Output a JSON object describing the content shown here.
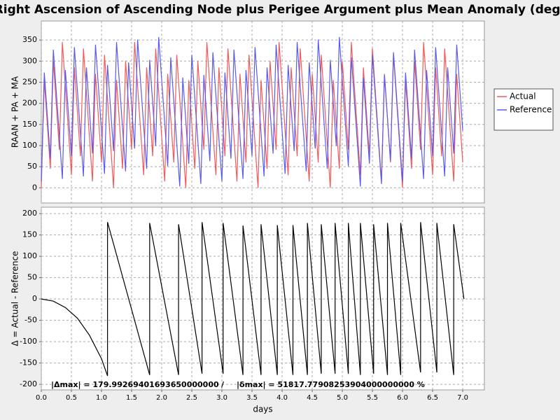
{
  "chart_data": [
    {
      "type": "line",
      "title": "Right Ascension of Ascending Node plus Perigee Argument plus Mean Anomaly (deg)",
      "ylabel": "RAAN + PA + MA",
      "x": [
        0,
        0.05,
        0.1,
        0.15,
        0.2,
        0.25,
        0.3,
        0.35,
        0.4,
        0.45,
        0.5,
        0.55,
        0.6,
        0.65,
        0.7,
        0.75,
        0.8,
        0.85,
        0.9,
        0.95,
        1,
        1.05,
        1.1,
        1.15,
        1.2,
        1.25,
        1.3,
        1.35,
        1.4,
        1.45,
        1.5,
        1.55,
        1.6,
        1.65,
        1.7,
        1.75,
        1.8,
        1.85,
        1.9,
        1.95,
        2,
        2.05,
        2.1,
        2.15,
        2.2,
        2.25,
        2.3,
        2.35,
        2.4,
        2.45,
        2.5,
        2.55,
        2.6,
        2.65,
        2.7,
        2.75,
        2.8,
        2.85,
        2.9,
        2.95,
        3,
        3.05,
        3.1,
        3.15,
        3.2,
        3.25,
        3.3,
        3.35,
        3.4,
        3.45,
        3.5,
        3.55,
        3.6,
        3.65,
        3.7,
        3.75,
        3.8,
        3.85,
        3.9,
        3.95,
        4,
        4.05,
        4.1,
        4.15,
        4.2,
        4.25,
        4.3,
        4.35,
        4.4,
        4.45,
        4.5,
        4.55,
        4.6,
        4.65,
        4.7,
        4.75,
        4.8,
        4.85,
        4.9,
        4.95,
        5,
        5.05,
        5.1,
        5.15,
        5.2,
        5.25,
        5.3,
        5.35,
        5.4,
        5.45,
        5.5,
        5.55,
        5.6,
        5.65,
        5.7,
        5.75,
        5.8,
        5.85,
        5.9,
        5.95,
        6,
        6.05,
        6.1,
        6.15,
        6.2,
        6.25,
        6.3,
        6.35,
        6.4,
        6.45,
        6.5,
        6.55,
        6.6,
        6.65,
        6.7,
        6.75,
        6.8,
        6.85,
        6.9,
        6.95,
        7
      ],
      "series": [
        {
          "name": "Actual",
          "color": "#f05a5a",
          "values": [
            0,
            255,
            150,
            45,
            300,
            195,
            90,
            345,
            240,
            135,
            30,
            285,
            180,
            75,
            330,
            225,
            120,
            15,
            270,
            165,
            60,
            315,
            210,
            105,
            0,
            255,
            150,
            45,
            300,
            195,
            90,
            345,
            240,
            135,
            30,
            285,
            180,
            75,
            330,
            225,
            120,
            15,
            270,
            165,
            60,
            315,
            210,
            105,
            0,
            255,
            150,
            45,
            300,
            195,
            90,
            345,
            240,
            135,
            30,
            285,
            180,
            75,
            330,
            225,
            120,
            15,
            270,
            165,
            60,
            315,
            210,
            105,
            0,
            255,
            150,
            45,
            300,
            195,
            90,
            345,
            240,
            135,
            30,
            285,
            180,
            75,
            330,
            225,
            120,
            15,
            270,
            165,
            60,
            315,
            210,
            105,
            0,
            255,
            150,
            45,
            300,
            195,
            90,
            345,
            240,
            135,
            30,
            285,
            180,
            75,
            330,
            225,
            120,
            15,
            270,
            165,
            60,
            315,
            210,
            105,
            0,
            255,
            150,
            45,
            300,
            195,
            90,
            345,
            240,
            135,
            30,
            285,
            180,
            75,
            330,
            225,
            120,
            15,
            270,
            165,
            60
          ]
        },
        {
          "name": "Reference",
          "color": "#5a5af0",
          "values": [
            15,
            273,
            171,
            69,
            327,
            225,
            123,
            21,
            279,
            177,
            75,
            333,
            231,
            129,
            27,
            285,
            183,
            81,
            339,
            237,
            135,
            33,
            291,
            189,
            87,
            345,
            243,
            141,
            39,
            297,
            195,
            93,
            351,
            249,
            147,
            45,
            303,
            201,
            99,
            357,
            255,
            153,
            51,
            309,
            207,
            105,
            3,
            261,
            159,
            57,
            315,
            213,
            111,
            9,
            267,
            165,
            63,
            321,
            219,
            117,
            15,
            273,
            171,
            69,
            327,
            225,
            123,
            21,
            279,
            177,
            75,
            333,
            231,
            129,
            27,
            285,
            183,
            81,
            339,
            237,
            135,
            33,
            291,
            189,
            87,
            345,
            243,
            141,
            39,
            297,
            195,
            93,
            351,
            249,
            147,
            45,
            303,
            201,
            99,
            357,
            255,
            153,
            51,
            309,
            207,
            105,
            3,
            261,
            159,
            57,
            315,
            213,
            111,
            9,
            267,
            165,
            63,
            321,
            219,
            117,
            15,
            273,
            171,
            69,
            327,
            225,
            123,
            21,
            279,
            177,
            75,
            333,
            231,
            129,
            27,
            285,
            183,
            81,
            339,
            237,
            135
          ]
        }
      ],
      "xlim": [
        0,
        7.36
      ],
      "xticks": [
        {
          "value": 0,
          "label": "0.0"
        },
        0.5,
        {
          "value": 1,
          "label": "1.0"
        },
        1.5,
        {
          "value": 2,
          "label": "2.0"
        },
        2.5,
        {
          "value": 3,
          "label": "3.0"
        },
        3.5,
        {
          "value": 4,
          "label": "4.0"
        },
        4.5,
        {
          "value": 5,
          "label": "5.0"
        },
        5.5,
        {
          "value": 6,
          "label": "6.0"
        },
        6.5,
        {
          "value": 7,
          "label": "7.0"
        }
      ],
      "ylim": [
        -36,
        395
      ],
      "yticks": [
        0,
        50,
        100,
        150,
        200,
        250,
        300,
        350
      ],
      "grid": true,
      "legend": "right"
    },
    {
      "type": "line",
      "ylabel": "Δ = Actual - Reference",
      "xlabel": "days",
      "x": [
        0,
        0.2,
        0.4,
        0.6,
        0.8,
        1.0,
        1.1,
        1.1,
        1.8,
        1.8,
        2.28,
        2.28,
        2.67,
        2.67,
        3.02,
        3.02,
        3.35,
        3.35,
        3.65,
        3.65,
        3.92,
        3.92,
        4.18,
        4.18,
        4.42,
        4.42,
        4.65,
        4.65,
        4.88,
        4.88,
        5.1,
        5.1,
        5.3,
        5.3,
        5.52,
        5.52,
        5.75,
        5.75,
        5.97,
        5.97,
        6.3,
        6.3,
        6.57,
        6.57,
        6.85,
        6.85,
        7.02
      ],
      "series": [
        {
          "color": "#000000",
          "values": [
            0,
            -5,
            -20,
            -45,
            -85,
            -140,
            -180,
            180,
            -178,
            178,
            -178,
            175,
            -175,
            180,
            -175,
            178,
            -178,
            172,
            -178,
            175,
            -178,
            173,
            -178,
            173,
            -178,
            178,
            -175,
            175,
            -175,
            178,
            -175,
            178,
            -178,
            178,
            -175,
            175,
            -178,
            178,
            -178,
            178,
            -172,
            180,
            -172,
            178,
            -178,
            175,
            0
          ]
        }
      ],
      "xlim": [
        0,
        7.36
      ],
      "xticks": [
        {
          "value": 0,
          "label": "0.0"
        },
        0.5,
        {
          "value": 1,
          "label": "1.0"
        },
        1.5,
        {
          "value": 2,
          "label": "2.0"
        },
        2.5,
        {
          "value": 3,
          "label": "3.0"
        },
        3.5,
        {
          "value": 4,
          "label": "4.0"
        },
        4.5,
        {
          "value": 5,
          "label": "5.0"
        },
        5.5,
        {
          "value": 6,
          "label": "6.0"
        },
        6.5,
        {
          "value": 7,
          "label": "7.0"
        }
      ],
      "ylim": [
        -213,
        215
      ],
      "yticks": [
        -200,
        -150,
        -100,
        -50,
        0,
        50,
        100,
        150,
        200
      ],
      "grid": true,
      "annotations": [
        "|Δmax| = 179.99269401693650000000",
        "/",
        "|δmax| = 51817.77908253904000000000 %"
      ]
    }
  ]
}
